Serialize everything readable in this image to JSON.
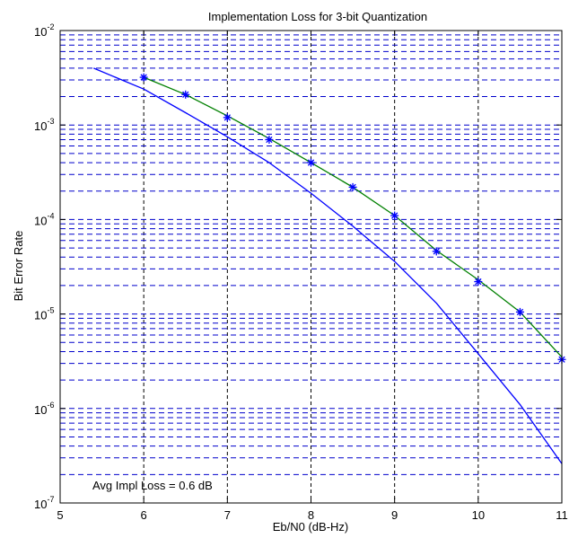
{
  "chart_data": {
    "type": "line",
    "title": "Implementation Loss for 3-bit Quantization",
    "xlabel": "Eb/N0 (dB-Hz)",
    "ylabel": "Bit Error Rate",
    "xlim": [
      5,
      11
    ],
    "ylim": [
      1e-07,
      0.01
    ],
    "yscale": "log",
    "grid": true,
    "x_ticks": [
      "5",
      "6",
      "7",
      "8",
      "9",
      "10",
      "11"
    ],
    "y_ticks": [
      {
        "base": "10",
        "exp": "-7"
      },
      {
        "base": "10",
        "exp": "-6"
      },
      {
        "base": "10",
        "exp": "-5"
      },
      {
        "base": "10",
        "exp": "-4"
      },
      {
        "base": "10",
        "exp": "-3"
      },
      {
        "base": "10",
        "exp": "-2"
      }
    ],
    "annotation": "Avg Impl Loss = 0.6 dB",
    "series": [
      {
        "color": "#0000ff",
        "style": "line",
        "x": [
          5.4,
          6,
          6.5,
          7,
          7.5,
          8,
          8.5,
          9,
          9.5,
          10,
          10.5,
          11
        ],
        "y": [
          0.004,
          0.0024,
          0.00135,
          0.00075,
          0.0004,
          0.00019,
          8.5e-05,
          3.6e-05,
          1.3e-05,
          3.8e-06,
          1.1e-06,
          2.6e-07
        ]
      },
      {
        "color": "#008000",
        "style": "line",
        "x": [
          6,
          6.5,
          7,
          7.5,
          8,
          8.5,
          9,
          9.5,
          10,
          10.5,
          11
        ],
        "y": [
          0.0032,
          0.0021,
          0.00125,
          0.00072,
          0.0004,
          0.00022,
          0.00011,
          4.7e-05,
          2.3e-05,
          1.05e-05,
          3.5e-06
        ]
      },
      {
        "color": "#0000ff",
        "style": "markers",
        "marker": "*",
        "x": [
          6,
          6.5,
          7,
          7.5,
          8,
          8.5,
          9,
          9.5,
          10,
          10.5,
          11
        ],
        "y": [
          0.0032,
          0.0021,
          0.0012,
          0.0007,
          0.0004,
          0.00022,
          0.00011,
          4.6e-05,
          2.2e-05,
          1.05e-05,
          3.3e-06
        ]
      }
    ]
  }
}
